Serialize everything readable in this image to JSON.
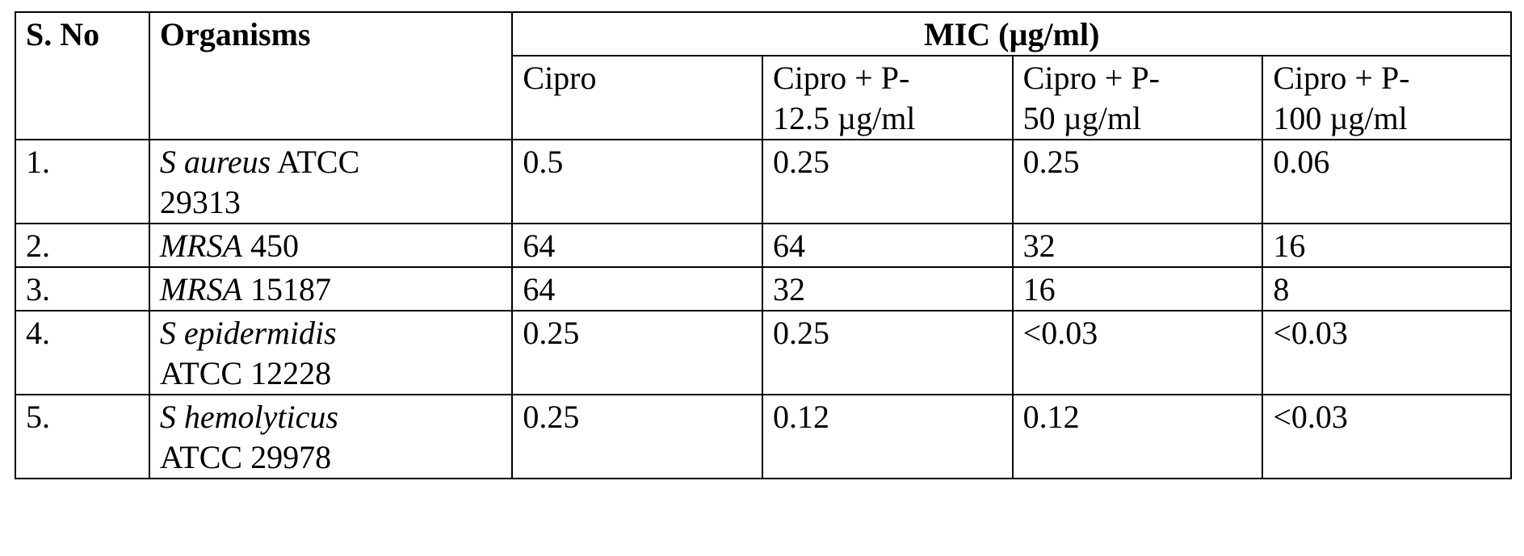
{
  "table": {
    "headers": {
      "sno": "S. No",
      "organisms": "Organisms",
      "mic_group": "MIC (µg/ml)",
      "columns": [
        {
          "line1": "Cipro",
          "line2": ""
        },
        {
          "line1": "Cipro + P-",
          "line2": "12.5 µg/ml"
        },
        {
          "line1": "Cipro + P-",
          "line2": "50 µg/ml"
        },
        {
          "line1": "Cipro + P-",
          "line2": "100 µg/ml"
        }
      ]
    },
    "rows": [
      {
        "sno": "1.",
        "organism_italic": "S aureus",
        "organism_rest": " ATCC",
        "organism_line2": "29313",
        "values": [
          "0.5",
          "0.25",
          "0.25",
          "0.06"
        ]
      },
      {
        "sno": "2.",
        "organism_italic": "MRSA",
        "organism_rest": " 450",
        "organism_line2": "",
        "values": [
          "64",
          "64",
          "32",
          "16"
        ]
      },
      {
        "sno": "3.",
        "organism_italic": "MRSA",
        "organism_rest": " 15187",
        "organism_line2": "",
        "values": [
          "64",
          "32",
          "16",
          "8"
        ]
      },
      {
        "sno": "4.",
        "organism_italic": "S epidermidis",
        "organism_rest": "",
        "organism_line2": "ATCC 12228",
        "values": [
          "0.25",
          "0.25",
          "<0.03",
          "<0.03"
        ]
      },
      {
        "sno": "5.",
        "organism_italic": "S hemolyticus",
        "organism_rest": "",
        "organism_line2": "ATCC 29978",
        "values": [
          "0.25",
          "0.12",
          "0.12",
          "<0.03"
        ]
      }
    ]
  }
}
